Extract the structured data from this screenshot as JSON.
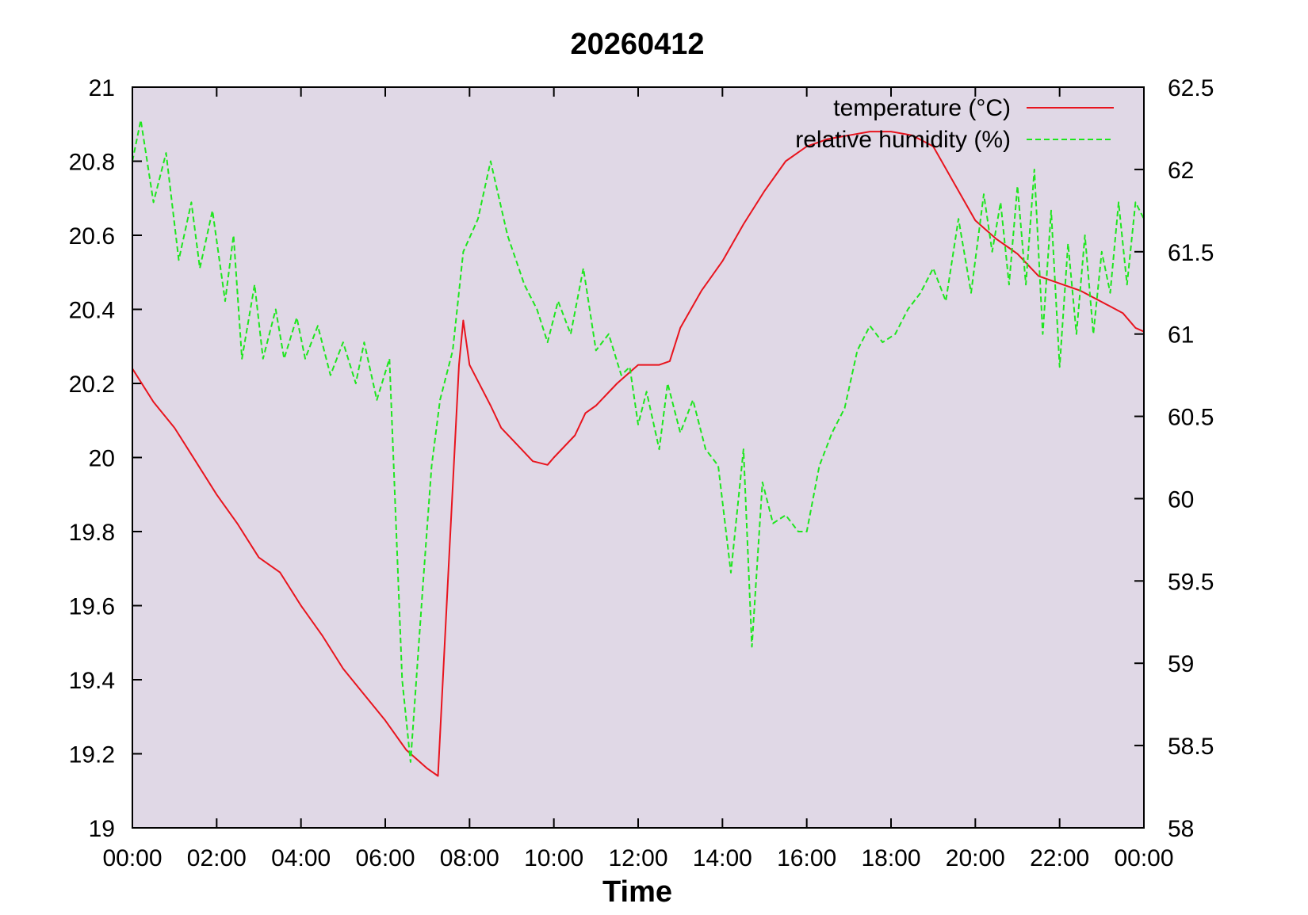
{
  "chart_data": {
    "type": "line",
    "title": "20260412",
    "xlabel": "Time",
    "ylabel": "",
    "y2label": "",
    "x_ticks": [
      "00:00",
      "02:00",
      "04:00",
      "06:00",
      "08:00",
      "10:00",
      "12:00",
      "14:00",
      "16:00",
      "18:00",
      "20:00",
      "22:00",
      "00:00"
    ],
    "xlim": [
      0,
      24
    ],
    "ylim": [
      19,
      21
    ],
    "y_ticks": [
      "19",
      "19.2",
      "19.4",
      "19.6",
      "19.8",
      "20",
      "20.2",
      "20.4",
      "20.6",
      "20.8",
      "21"
    ],
    "y2lim": [
      58,
      62.5
    ],
    "y2_ticks": [
      "58",
      "58.5",
      "59",
      "59.5",
      "60",
      "60.5",
      "61",
      "61.5",
      "62",
      "62.5"
    ],
    "legend_position": "top-right",
    "plot_background": "#e0d8e6",
    "series": [
      {
        "name": "temperature (°C)",
        "axis": "left",
        "color": "#e8141e",
        "style": "solid",
        "x": [
          0,
          0.5,
          1,
          1.5,
          2,
          2.5,
          3,
          3.5,
          4,
          4.5,
          5,
          5.5,
          6,
          6.5,
          7,
          7.25,
          7.5,
          7.75,
          7.85,
          8,
          8.5,
          8.75,
          9,
          9.5,
          9.85,
          10,
          10.5,
          10.75,
          11,
          11.5,
          12,
          12.5,
          12.75,
          13,
          13.5,
          14,
          14.5,
          15,
          15.5,
          16,
          16.5,
          17,
          17.5,
          18,
          18.5,
          19,
          19.5,
          20,
          20.5,
          21,
          21.5,
          22,
          22.5,
          23,
          23.5,
          23.8,
          24
        ],
        "y": [
          20.24,
          20.15,
          20.08,
          19.99,
          19.9,
          19.82,
          19.73,
          19.69,
          19.6,
          19.52,
          19.43,
          19.36,
          19.29,
          19.21,
          19.16,
          19.14,
          19.7,
          20.25,
          20.37,
          20.25,
          20.14,
          20.08,
          20.05,
          19.99,
          19.98,
          20.0,
          20.06,
          20.12,
          20.14,
          20.2,
          20.25,
          20.25,
          20.26,
          20.35,
          20.45,
          20.53,
          20.63,
          20.72,
          20.8,
          20.84,
          20.86,
          20.87,
          20.88,
          20.88,
          20.87,
          20.84,
          20.74,
          20.64,
          20.59,
          20.55,
          20.49,
          20.47,
          20.45,
          20.42,
          20.39,
          20.35,
          20.34
        ]
      },
      {
        "name": "relative humidity (%)",
        "axis": "right",
        "color": "#1ee61e",
        "style": "dashed",
        "x": [
          0,
          0.2,
          0.5,
          0.8,
          1.1,
          1.4,
          1.6,
          1.9,
          2.2,
          2.4,
          2.6,
          2.9,
          3.1,
          3.4,
          3.6,
          3.9,
          4.1,
          4.4,
          4.7,
          5,
          5.3,
          5.5,
          5.8,
          6.1,
          6.4,
          6.6,
          6.9,
          7.1,
          7.3,
          7.6,
          7.85,
          8.2,
          8.5,
          8.9,
          9.3,
          9.6,
          9.85,
          10.1,
          10.4,
          10.7,
          11,
          11.3,
          11.6,
          11.8,
          12,
          12.2,
          12.5,
          12.7,
          13,
          13.3,
          13.6,
          13.9,
          14.2,
          14.5,
          14.7,
          14.95,
          15.2,
          15.5,
          15.8,
          16,
          16.3,
          16.6,
          16.9,
          17.2,
          17.5,
          17.8,
          18.1,
          18.4,
          18.7,
          19,
          19.3,
          19.6,
          19.9,
          20.2,
          20.4,
          20.6,
          20.8,
          21,
          21.2,
          21.4,
          21.6,
          21.8,
          22,
          22.2,
          22.4,
          22.6,
          22.8,
          23,
          23.2,
          23.4,
          23.6,
          23.8,
          24
        ],
        "y": [
          62.05,
          62.3,
          61.8,
          62.1,
          61.45,
          61.8,
          61.4,
          61.75,
          61.2,
          61.6,
          60.85,
          61.3,
          60.85,
          61.15,
          60.85,
          61.1,
          60.85,
          61.05,
          60.75,
          60.95,
          60.7,
          60.95,
          60.6,
          60.85,
          58.9,
          58.4,
          59.5,
          60.2,
          60.6,
          60.9,
          61.5,
          61.7,
          62.05,
          61.6,
          61.3,
          61.15,
          60.95,
          61.2,
          61.0,
          61.4,
          60.9,
          61.0,
          60.75,
          60.8,
          60.45,
          60.65,
          60.3,
          60.7,
          60.4,
          60.6,
          60.3,
          60.2,
          59.55,
          60.3,
          59.1,
          60.1,
          59.85,
          59.9,
          59.8,
          59.8,
          60.2,
          60.4,
          60.55,
          60.9,
          61.05,
          60.95,
          61.0,
          61.15,
          61.25,
          61.4,
          61.2,
          61.7,
          61.25,
          61.85,
          61.5,
          61.8,
          61.3,
          61.9,
          61.3,
          62.0,
          61.0,
          61.75,
          60.8,
          61.55,
          61.0,
          61.6,
          61.0,
          61.5,
          61.25,
          61.8,
          61.3,
          61.8,
          61.7
        ]
      }
    ]
  }
}
